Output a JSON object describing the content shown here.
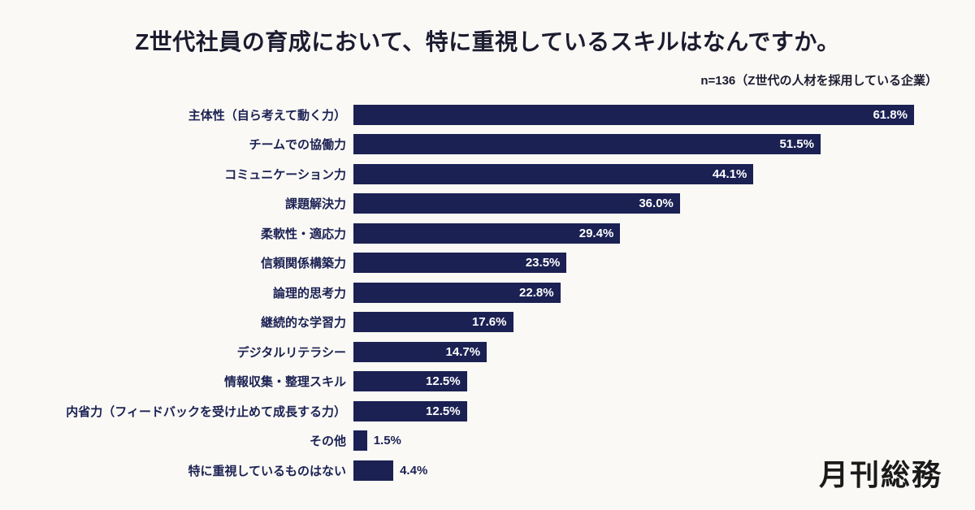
{
  "page": {
    "title": "Z世代社員の育成において、特に重視しているスキルはなんですか。",
    "subtitle": "n=136（Z世代の人材を採用している企業）",
    "logo": "月刊総務"
  },
  "colors": {
    "background": "#faf9f5",
    "bar": "#1b2153",
    "text": "#1b2153",
    "value_inside": "#ffffff"
  },
  "chart_data": {
    "type": "bar",
    "orientation": "horizontal",
    "title": "Z世代社員の育成において、特に重視しているスキルはなんですか。",
    "subtitle": "n=136（Z世代の人材を採用している企業）",
    "sample_note": "n=136",
    "unit": "%",
    "xlim": [
      0,
      65
    ],
    "grid": false,
    "legend": "none",
    "categories": [
      "主体性（自ら考えて動く力）",
      "チームでの協働力",
      "コミュニケーション力",
      "課題解決力",
      "柔軟性・適応力",
      "信頼関係構築力",
      "論理的思考力",
      "継続的な学習力",
      "デジタルリテラシー",
      "情報収集・整理スキル",
      "内省力（フィードバックを受け止めて成長する力）",
      "その他",
      "特に重視しているものはない"
    ],
    "values": [
      61.8,
      51.5,
      44.1,
      36.0,
      29.4,
      23.5,
      22.8,
      17.6,
      14.7,
      12.5,
      12.5,
      1.5,
      4.4
    ],
    "value_labels": [
      "61.8%",
      "51.5%",
      "44.1%",
      "36.0%",
      "29.4%",
      "23.5%",
      "22.8%",
      "17.6%",
      "14.7%",
      "12.5%",
      "12.5%",
      "1.5%",
      "4.4%"
    ]
  }
}
